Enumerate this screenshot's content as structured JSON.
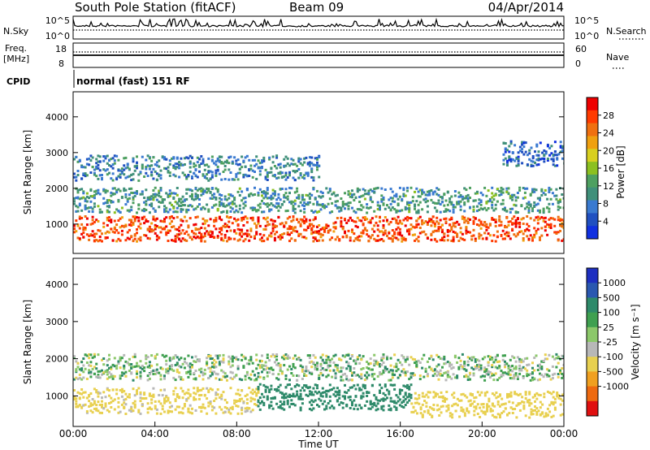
{
  "header": {
    "station": "South Pole Station (fitACF)",
    "beam": "Beam 09",
    "date": "04/Apr/2014"
  },
  "sky_panel": {
    "left_label": "N.Sky",
    "right_label": "N.Search",
    "ticks_left": [
      "10^5",
      "10^0"
    ],
    "ticks_right": [
      "10^5",
      "10^0"
    ]
  },
  "freq_panel": {
    "label_line1": "Freq.",
    "label_line2": "[MHz]",
    "ticks_left": [
      "18",
      "8"
    ],
    "ticks_right": [
      "60",
      "0"
    ],
    "right_label": "Nave"
  },
  "cpid_panel": {
    "label": "CPID",
    "text": "normal (fast) 151 RF"
  },
  "colors": {
    "power": [
      "#1030e0",
      "#2050c0",
      "#3a7ad0",
      "#40907a",
      "#4ea060",
      "#8cc020",
      "#d8d020",
      "#f0a010",
      "#f07010",
      "#ff3b00",
      "#ee0000"
    ],
    "velocity": [
      "#1e2fc0",
      "#2a58b0",
      "#2e8a6a",
      "#3fa050",
      "#8cc86a",
      "#b8b8b8",
      "#e8d050",
      "#f0a020",
      "#ee6a10",
      "#e01010"
    ]
  },
  "chart_data": [
    {
      "type": "heatmap",
      "title": "Power",
      "ylabel": "Slant Range [km]",
      "ylim": [
        180,
        4700
      ],
      "yticks": [
        "1000",
        "2000",
        "3000",
        "4000"
      ],
      "colorbar_label": "Power [dB]",
      "colorbar_ticks": [
        "4",
        "8",
        "12",
        "16",
        "20",
        "24",
        "28"
      ],
      "colorbar_range": [
        0,
        32
      ],
      "bands": [
        {
          "t_start": 0.0,
          "t_end": 24.0,
          "range_km": 900,
          "value_db": 28
        },
        {
          "t_start": 0.0,
          "t_end": 24.0,
          "range_km": 1700,
          "value_db": 10
        },
        {
          "t_start": 0.0,
          "t_end": 12.0,
          "range_km": 2600,
          "value_db": 8
        },
        {
          "t_start": 21.0,
          "t_end": 24.0,
          "range_km": 3000,
          "value_db": 5
        }
      ]
    },
    {
      "type": "heatmap",
      "title": "Velocity",
      "ylabel": "Slant Range [km]",
      "ylim": [
        180,
        4700
      ],
      "yticks": [
        "1000",
        "2000",
        "3000",
        "4000"
      ],
      "xlabel": "Time UT",
      "xticks": [
        "00:00",
        "04:00",
        "08:00",
        "12:00",
        "16:00",
        "20:00",
        "00:00"
      ],
      "xlim": [
        0,
        24
      ],
      "colorbar_label": "Velocity [m s⁻¹]",
      "colorbar_ticks": [
        "1000",
        "500",
        "100",
        "25",
        "-25",
        "-100",
        "-500",
        "-1000"
      ],
      "bands": [
        {
          "t_start": 0.0,
          "t_end": 9.0,
          "range_km": 900,
          "value_ms": -200
        },
        {
          "t_start": 9.0,
          "t_end": 16.5,
          "range_km": 1000,
          "value_ms": 300
        },
        {
          "t_start": 16.5,
          "t_end": 24.0,
          "range_km": 800,
          "value_ms": -300
        },
        {
          "t_start": 0.0,
          "t_end": 24.0,
          "range_km": 1800,
          "value_ms": 0
        }
      ]
    }
  ]
}
